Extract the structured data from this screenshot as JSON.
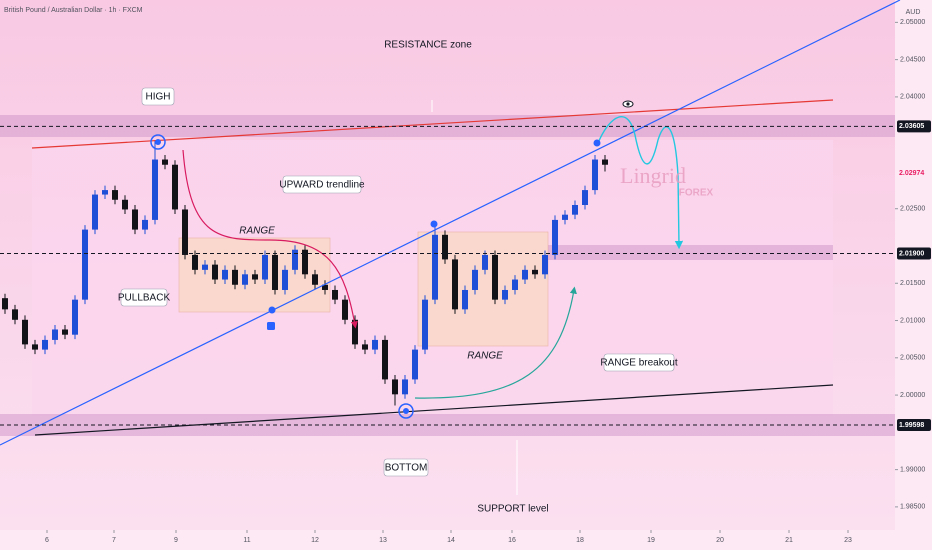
{
  "chart_data": {
    "type": "candlestick",
    "title": "British Pound / Australian Dollar · 1h · FXCM",
    "currency": "AUD",
    "xlim": [
      -0.5,
      89
    ],
    "ylim": [
      1.9819,
      2.053
    ],
    "xticks": [
      {
        "value": 4.2,
        "label": "6"
      },
      {
        "value": 10.9,
        "label": "7"
      },
      {
        "value": 17.1,
        "label": "9"
      },
      {
        "value": 24.2,
        "label": "11"
      },
      {
        "value": 31,
        "label": "12"
      },
      {
        "value": 37.8,
        "label": "13"
      },
      {
        "value": 44.6,
        "label": "14"
      },
      {
        "value": 50.7,
        "label": "16"
      },
      {
        "value": 57.5,
        "label": "18"
      },
      {
        "value": 64.6,
        "label": "19"
      },
      {
        "value": 71.5,
        "label": "20"
      },
      {
        "value": 78.4,
        "label": "21"
      },
      {
        "value": 84.3,
        "label": "23"
      }
    ],
    "yticks": [
      {
        "value": 2.05,
        "label": "2.05000"
      },
      {
        "value": 2.045,
        "label": "2.04500"
      },
      {
        "value": 2.04,
        "label": "2.04000"
      },
      {
        "value": 2.025,
        "label": "2.02500"
      },
      {
        "value": 2.015,
        "label": "2.01500"
      },
      {
        "value": 2.01,
        "label": "2.01000"
      },
      {
        "value": 2.005,
        "label": "2.00500"
      },
      {
        "value": 2,
        "label": "2.00000"
      },
      {
        "value": 1.99,
        "label": "1.99000"
      },
      {
        "value": 1.985,
        "label": "1.98500"
      }
    ],
    "price_labels": [
      {
        "value": 2.03605,
        "label": "2.03605",
        "color": "#131722",
        "dashed": true
      },
      {
        "value": 2.02974,
        "label": "2.02974",
        "color": "#e91e63",
        "dashed": false
      },
      {
        "value": 2.019,
        "label": "2.01900",
        "color": "#131722",
        "dashed": true
      },
      {
        "value": 1.99598,
        "label": "1.99598",
        "color": "#131722",
        "dashed": true
      }
    ],
    "up_color": "#1f4fd6",
    "down_color": "#111318",
    "open": [
      2.013,
      2.0115,
      2.0101,
      2.0068,
      2.0061,
      2.0074,
      2.0088,
      2.0081,
      2.0128,
      2.0222,
      2.0269,
      2.0275,
      2.0262,
      2.0249,
      2.0222,
      2.0235,
      2.0316,
      2.0309,
      2.0249,
      2.0188,
      2.0168,
      2.0175,
      2.0155,
      2.0168,
      2.0148,
      2.0162,
      2.0155,
      2.0188,
      2.0141,
      2.0168,
      2.0195,
      2.0162,
      2.0148,
      2.0141,
      2.0128,
      2.0101,
      2.0068,
      2.0061,
      2.0074,
      2.0021,
      2.0001,
      2.0021,
      2.0061,
      2.0128,
      2.0215,
      2.0182,
      2.0115,
      2.0141,
      2.0168,
      2.0188,
      2.0128,
      2.0141,
      2.0155,
      2.0168,
      2.0162,
      2.0188,
      2.0235,
      2.0242,
      2.0255,
      2.0275,
      2.0316
    ],
    "high": [
      2.0136,
      2.0121,
      2.0107,
      2.0074,
      2.008,
      2.0094,
      2.0094,
      2.0134,
      2.0228,
      2.0275,
      2.0281,
      2.0281,
      2.0268,
      2.0255,
      2.0241,
      2.0342,
      2.0322,
      2.0315,
      2.0255,
      2.0194,
      2.0181,
      2.0181,
      2.0174,
      2.0174,
      2.0168,
      2.0168,
      2.0194,
      2.0194,
      2.0174,
      2.0201,
      2.0201,
      2.0168,
      2.0154,
      2.0147,
      2.0134,
      2.0107,
      2.0074,
      2.008,
      2.008,
      2.0027,
      2.0027,
      2.0067,
      2.0134,
      2.023,
      2.0221,
      2.0188,
      2.0147,
      2.0174,
      2.0194,
      2.0194,
      2.0147,
      2.0161,
      2.0174,
      2.0174,
      2.0194,
      2.0241,
      2.0248,
      2.0261,
      2.0281,
      2.0322,
      2.0322
    ],
    "low": [
      2.0109,
      2.0095,
      2.0062,
      2.0055,
      2.0055,
      2.0068,
      2.0075,
      2.0075,
      2.0122,
      2.0216,
      2.0263,
      2.0256,
      2.0243,
      2.0216,
      2.0216,
      2.0229,
      2.0303,
      2.0243,
      2.0182,
      2.0162,
      2.0162,
      2.0149,
      2.0149,
      2.0142,
      2.0142,
      2.0149,
      2.0149,
      2.0135,
      2.0135,
      2.0162,
      2.0156,
      2.0142,
      2.0135,
      2.0122,
      2.0095,
      2.0062,
      2.0055,
      2.0055,
      2.0015,
      1.9986,
      1.9995,
      2.0015,
      2.0055,
      2.0122,
      2.0176,
      2.0109,
      2.0109,
      2.0135,
      2.0162,
      2.0122,
      2.0122,
      2.0135,
      2.0149,
      2.0156,
      2.0156,
      2.0182,
      2.0229,
      2.0236,
      2.0249,
      2.0269,
      2.03
    ],
    "close": [
      2.0115,
      2.0101,
      2.0068,
      2.0061,
      2.0074,
      2.0088,
      2.0081,
      2.0128,
      2.0222,
      2.0269,
      2.0275,
      2.0262,
      2.0249,
      2.0222,
      2.0235,
      2.0316,
      2.0309,
      2.0249,
      2.0188,
      2.0168,
      2.0175,
      2.0155,
      2.0168,
      2.0148,
      2.0162,
      2.0155,
      2.0188,
      2.0141,
      2.0168,
      2.0195,
      2.0162,
      2.0148,
      2.0141,
      2.0128,
      2.0101,
      2.0068,
      2.0061,
      2.0074,
      2.0021,
      2.0001,
      2.0021,
      2.0061,
      2.0128,
      2.0215,
      2.0182,
      2.0115,
      2.0141,
      2.0168,
      2.0188,
      2.0128,
      2.0141,
      2.0155,
      2.0168,
      2.0162,
      2.0188,
      2.0235,
      2.0242,
      2.0255,
      2.0275,
      2.0316,
      2.0309
    ],
    "annotations": [
      "RESISTANCE zone",
      "HIGH",
      "RANGE",
      "UPWARD trendline",
      "PULLBACK",
      "RANGE",
      "RANGE breakout",
      "BOTTOM",
      "SUPPORT level"
    ],
    "watermark": [
      "Lingrid",
      "FOREX"
    ]
  }
}
